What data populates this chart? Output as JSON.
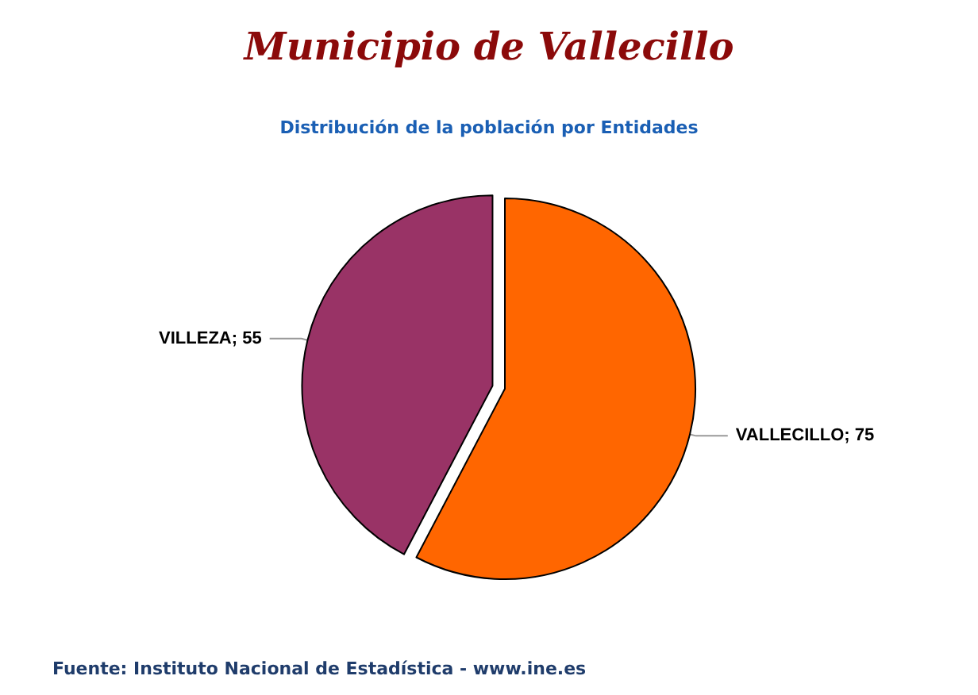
{
  "chart_data": {
    "type": "pie",
    "title": "Municipio de Vallecillo",
    "subtitle": "Distribución de la población por Entidades",
    "categories": [
      "VALLECILLO",
      "VILLEZA"
    ],
    "values": [
      75,
      55
    ],
    "colors": [
      "#ff6600",
      "#993366"
    ],
    "value_labels": [
      "; 75",
      "; 55"
    ],
    "annotations": [
      "Fuente: Instituto Nacional de Estadística - www.ine.es"
    ]
  }
}
